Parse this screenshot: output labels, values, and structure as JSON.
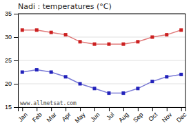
{
  "chart_data": {
    "type": "line",
    "title": "Nadi : temperatures (°C)",
    "categories": [
      "Jan",
      "Feb",
      "Mar",
      "Apr",
      "May",
      "Jun",
      "Jul",
      "Aug",
      "Sep",
      "Oct",
      "Nov",
      "Dec"
    ],
    "series": [
      {
        "color": "#cc2020",
        "marker": "square",
        "values": [
          31.5,
          31.5,
          31.0,
          30.5,
          29.0,
          28.5,
          28.5,
          28.5,
          29.0,
          30.0,
          30.5,
          31.5
        ]
      },
      {
        "color": "#2222bb",
        "marker": "square",
        "values": [
          22.5,
          23.0,
          22.5,
          21.5,
          20.0,
          19.0,
          18.0,
          18.0,
          19.0,
          20.5,
          21.5,
          22.0
        ]
      }
    ],
    "ylim": [
      15,
      35
    ],
    "yticks": [
      15,
      20,
      25,
      30,
      35
    ],
    "grid": "y",
    "annotations": [
      "www.allmetsat.com"
    ]
  }
}
